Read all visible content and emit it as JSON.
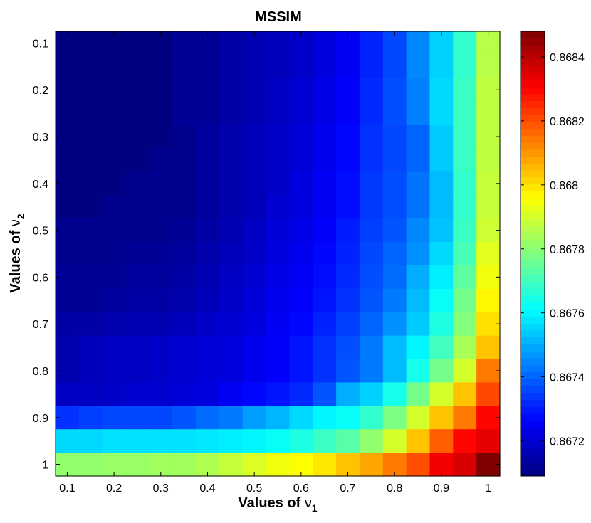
{
  "chart_data": {
    "type": "heatmap",
    "title": "MSSIM",
    "xlabel": {
      "prefix": "Values of ",
      "symbol": "ν",
      "subscript": "1"
    },
    "ylabel": {
      "prefix": "Values of ",
      "symbol": "ν",
      "subscript": "2"
    },
    "x": [
      0.1,
      0.15,
      0.2,
      0.25,
      0.3,
      0.35,
      0.4,
      0.45,
      0.5,
      0.55,
      0.6,
      0.65,
      0.7,
      0.75,
      0.8,
      0.85,
      0.9,
      0.95,
      1.0
    ],
    "y": [
      0.1,
      0.15,
      0.2,
      0.25,
      0.3,
      0.35,
      0.4,
      0.45,
      0.5,
      0.55,
      0.6,
      0.65,
      0.7,
      0.75,
      0.8,
      0.85,
      0.9,
      0.95,
      1.0
    ],
    "x_ticks": [
      "0.1",
      "0.2",
      "0.3",
      "0.4",
      "0.5",
      "0.6",
      "0.7",
      "0.8",
      "0.9",
      "1"
    ],
    "y_ticks": [
      "0.1",
      "0.2",
      "0.3",
      "0.4",
      "0.5",
      "0.6",
      "0.7",
      "0.8",
      "0.9",
      "1"
    ],
    "x_tick_values": [
      0.1,
      0.2,
      0.3,
      0.4,
      0.5,
      0.6,
      0.7,
      0.8,
      0.9,
      1.0
    ],
    "y_tick_values": [
      0.1,
      0.2,
      0.3,
      0.4,
      0.5,
      0.6,
      0.7,
      0.8,
      0.9,
      1.0
    ],
    "colorbar": {
      "min": 0.86709,
      "max": 0.86848,
      "ticks": [
        "0.8672",
        "0.8674",
        "0.8676",
        "0.8678",
        "0.868",
        "0.8682",
        "0.8684"
      ],
      "tick_values": [
        0.8672,
        0.8674,
        0.8676,
        0.8678,
        0.868,
        0.8682,
        0.8684
      ],
      "colormap": "jet"
    },
    "values": [
      [
        0.86709,
        0.86709,
        0.86709,
        0.86709,
        0.86709,
        0.86712,
        0.86712,
        0.86714,
        0.86716,
        0.86717,
        0.86719,
        0.86722,
        0.86725,
        0.86731,
        0.86736,
        0.86745,
        0.86755,
        0.86768,
        0.86786
      ],
      [
        0.86709,
        0.86709,
        0.86709,
        0.86709,
        0.86709,
        0.86712,
        0.86712,
        0.86714,
        0.86716,
        0.86717,
        0.86719,
        0.86722,
        0.86725,
        0.86731,
        0.86736,
        0.86745,
        0.86755,
        0.86768,
        0.86786
      ],
      [
        0.86709,
        0.86709,
        0.86709,
        0.86709,
        0.86709,
        0.86712,
        0.86712,
        0.86714,
        0.86716,
        0.86718,
        0.8672,
        0.86723,
        0.86726,
        0.86732,
        0.86737,
        0.86744,
        0.86756,
        0.86769,
        0.86787
      ],
      [
        0.86709,
        0.86709,
        0.86709,
        0.86709,
        0.86709,
        0.86712,
        0.86712,
        0.86714,
        0.86716,
        0.86718,
        0.8672,
        0.86723,
        0.86726,
        0.86732,
        0.86737,
        0.86744,
        0.86756,
        0.86769,
        0.86787
      ],
      [
        0.86709,
        0.86709,
        0.86709,
        0.86709,
        0.86709,
        0.86711,
        0.86713,
        0.86715,
        0.86717,
        0.86719,
        0.86721,
        0.86724,
        0.86727,
        0.86733,
        0.86736,
        0.8674,
        0.86754,
        0.86769,
        0.86787
      ],
      [
        0.86709,
        0.86709,
        0.86709,
        0.86709,
        0.86711,
        0.86711,
        0.86713,
        0.86715,
        0.86717,
        0.86719,
        0.86721,
        0.86724,
        0.86727,
        0.86733,
        0.86736,
        0.8674,
        0.86754,
        0.86769,
        0.86787
      ],
      [
        0.86709,
        0.86709,
        0.86709,
        0.86711,
        0.86711,
        0.86711,
        0.86713,
        0.86715,
        0.86717,
        0.86719,
        0.86722,
        0.86725,
        0.86728,
        0.86734,
        0.86737,
        0.86742,
        0.86752,
        0.86768,
        0.86788
      ],
      [
        0.86709,
        0.86709,
        0.86711,
        0.86711,
        0.86711,
        0.86711,
        0.86713,
        0.86715,
        0.86717,
        0.8672,
        0.86722,
        0.86725,
        0.86728,
        0.86734,
        0.86737,
        0.86742,
        0.86752,
        0.86768,
        0.86788
      ],
      [
        0.86711,
        0.86711,
        0.86711,
        0.86711,
        0.86711,
        0.86712,
        0.86714,
        0.86716,
        0.86718,
        0.86721,
        0.86723,
        0.86726,
        0.8673,
        0.86735,
        0.86738,
        0.86745,
        0.86753,
        0.86769,
        0.86789
      ],
      [
        0.86711,
        0.86711,
        0.86711,
        0.86712,
        0.86712,
        0.86713,
        0.86715,
        0.86717,
        0.86719,
        0.86722,
        0.86724,
        0.86727,
        0.86731,
        0.86736,
        0.8674,
        0.86746,
        0.86756,
        0.86771,
        0.86792
      ],
      [
        0.86712,
        0.86712,
        0.86712,
        0.86713,
        0.86713,
        0.86714,
        0.86716,
        0.86718,
        0.8672,
        0.86723,
        0.86725,
        0.86728,
        0.86732,
        0.86737,
        0.86741,
        0.8675,
        0.86759,
        0.86774,
        0.86794
      ],
      [
        0.86712,
        0.86712,
        0.86713,
        0.86714,
        0.86714,
        0.86715,
        0.86717,
        0.86719,
        0.86721,
        0.86724,
        0.86726,
        0.86729,
        0.86733,
        0.86738,
        0.86743,
        0.86752,
        0.86762,
        0.86777,
        0.86797
      ],
      [
        0.86714,
        0.86714,
        0.86715,
        0.86716,
        0.86716,
        0.86717,
        0.86719,
        0.8672,
        0.86722,
        0.86725,
        0.86727,
        0.86731,
        0.86735,
        0.8674,
        0.86746,
        0.86754,
        0.86765,
        0.86779,
        0.868
      ],
      [
        0.86715,
        0.86717,
        0.86718,
        0.86718,
        0.86719,
        0.8672,
        0.86721,
        0.86722,
        0.86724,
        0.86726,
        0.86729,
        0.86733,
        0.86737,
        0.86743,
        0.86752,
        0.8676,
        0.8677,
        0.86784,
        0.86804
      ],
      [
        0.86715,
        0.86717,
        0.86718,
        0.86718,
        0.86719,
        0.8672,
        0.86721,
        0.86722,
        0.86724,
        0.86726,
        0.86729,
        0.86733,
        0.86738,
        0.86743,
        0.86752,
        0.86764,
        0.86777,
        0.8679,
        0.86814
      ],
      [
        0.86718,
        0.86718,
        0.86719,
        0.8672,
        0.8672,
        0.86721,
        0.86722,
        0.86725,
        0.86727,
        0.86729,
        0.86732,
        0.86738,
        0.8675,
        0.86755,
        0.86764,
        0.86777,
        0.8679,
        0.86804,
        0.86821
      ],
      [
        0.86733,
        0.86735,
        0.86736,
        0.86736,
        0.86736,
        0.86738,
        0.86741,
        0.86743,
        0.86748,
        0.86751,
        0.86756,
        0.8676,
        0.86762,
        0.86768,
        0.86778,
        0.8679,
        0.86804,
        0.86814,
        0.8683
      ],
      [
        0.86756,
        0.86756,
        0.86757,
        0.86757,
        0.86757,
        0.86757,
        0.86758,
        0.86759,
        0.8676,
        0.86762,
        0.86765,
        0.86769,
        0.86773,
        0.86781,
        0.8679,
        0.86804,
        0.86818,
        0.8683,
        0.86834
      ],
      [
        0.86781,
        0.86781,
        0.86782,
        0.86782,
        0.86783,
        0.86783,
        0.86785,
        0.86788,
        0.86791,
        0.86794,
        0.86796,
        0.86799,
        0.86804,
        0.86808,
        0.86814,
        0.8682,
        0.86832,
        0.86836,
        0.86848
      ]
    ]
  }
}
